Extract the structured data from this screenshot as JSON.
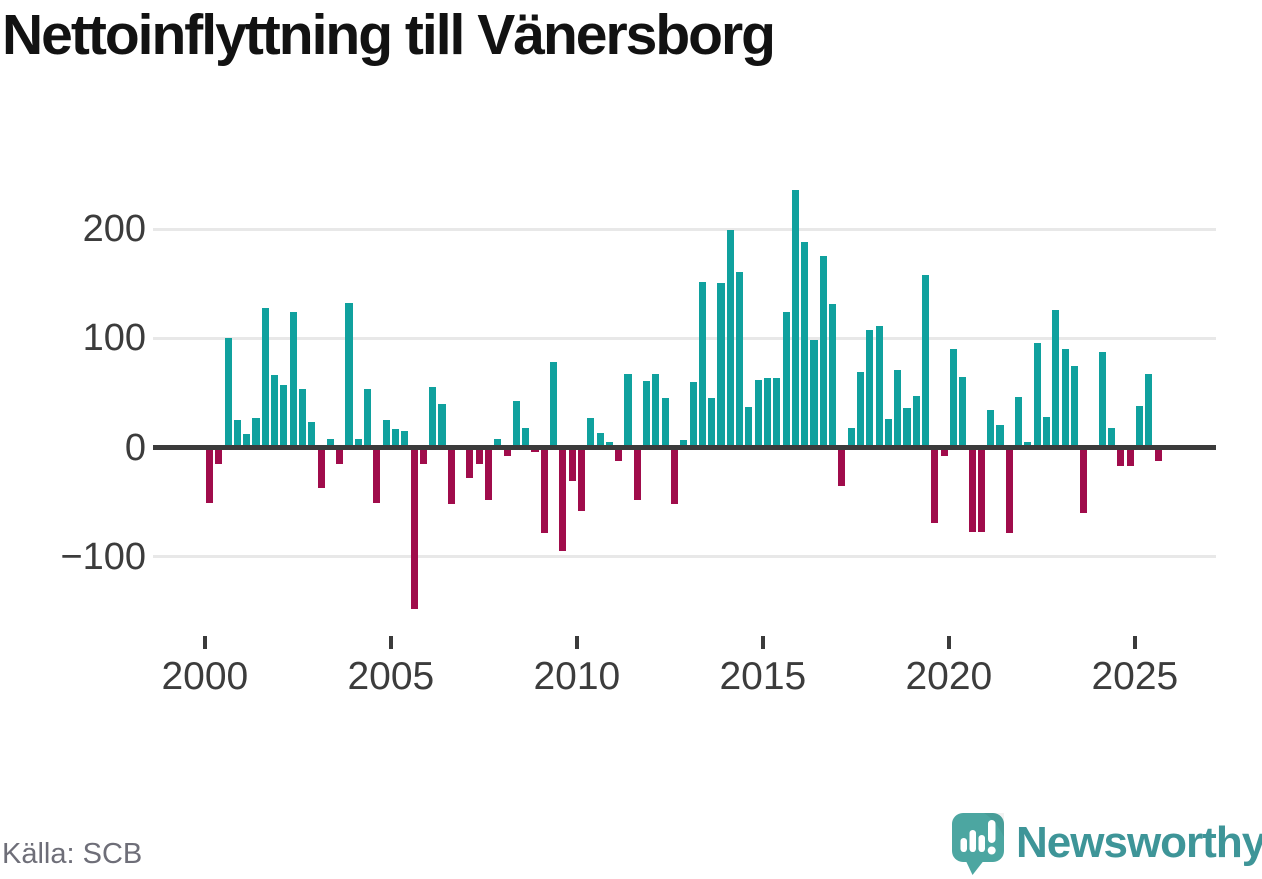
{
  "title": "Nettoinflyttning till Vänersborg",
  "source": "Källa: SCB",
  "brand": {
    "name": "Newsworthy",
    "icon": "newsworthy-speech-bubble-chart-icon"
  },
  "colors": {
    "positive": "#10A19E",
    "negative": "#A00C4B",
    "zero_line": "#3B3B3B",
    "grid": "#E8E8E8",
    "tick_label": "#3C3C3C",
    "title": "#121212",
    "source": "#6E6E78",
    "brand_text": "#3E9598",
    "brand_icon": "#4CA6A1"
  },
  "chart_data": {
    "type": "bar",
    "title": "Nettoinflyttning till Vänersborg",
    "xlabel": "",
    "ylabel": "",
    "frequency": "quarterly",
    "grid": "horizontal",
    "legend": "none",
    "ylim": [
      -175,
      245
    ],
    "y_ticks": [
      {
        "label": "200",
        "value": 200
      },
      {
        "label": "100",
        "value": 100
      },
      {
        "label": "0",
        "value": 0
      },
      {
        "label": "−100",
        "value": -100
      }
    ],
    "x_ticks": [
      {
        "label": "2000",
        "year": 2000
      },
      {
        "label": "2005",
        "year": 2005
      },
      {
        "label": "2010",
        "year": 2010
      },
      {
        "label": "2015",
        "year": 2015
      },
      {
        "label": "2020",
        "year": 2020
      },
      {
        "label": "2025",
        "year": 2025
      }
    ],
    "series": [
      {
        "name": "Nettoinflyttning",
        "start_period": "2000 Q1",
        "periods": [
          "2000 Q1",
          "2000 Q2",
          "2000 Q3",
          "2000 Q4",
          "2001 Q1",
          "2001 Q2",
          "2001 Q3",
          "2001 Q4",
          "2002 Q1",
          "2002 Q2",
          "2002 Q3",
          "2002 Q4",
          "2003 Q1",
          "2003 Q2",
          "2003 Q3",
          "2003 Q4",
          "2004 Q1",
          "2004 Q2",
          "2004 Q3",
          "2004 Q4",
          "2005 Q1",
          "2005 Q2",
          "2005 Q3",
          "2005 Q4",
          "2006 Q1",
          "2006 Q2",
          "2006 Q3",
          "2006 Q4",
          "2007 Q1",
          "2007 Q2",
          "2007 Q3",
          "2007 Q4",
          "2008 Q1",
          "2008 Q2",
          "2008 Q3",
          "2008 Q4",
          "2009 Q1",
          "2009 Q2",
          "2009 Q3",
          "2009 Q4",
          "2010 Q1",
          "2010 Q2",
          "2010 Q3",
          "2010 Q4",
          "2011 Q1",
          "2011 Q2",
          "2011 Q3",
          "2011 Q4",
          "2012 Q1",
          "2012 Q2",
          "2012 Q3",
          "2012 Q4",
          "2013 Q1",
          "2013 Q2",
          "2013 Q3",
          "2013 Q4",
          "2014 Q1",
          "2014 Q2",
          "2014 Q3",
          "2014 Q4",
          "2015 Q1",
          "2015 Q2",
          "2015 Q3",
          "2015 Q4",
          "2016 Q1",
          "2016 Q2",
          "2016 Q3",
          "2016 Q4",
          "2017 Q1",
          "2017 Q2",
          "2017 Q3",
          "2017 Q4",
          "2018 Q1",
          "2018 Q2",
          "2018 Q3",
          "2018 Q4",
          "2019 Q1",
          "2019 Q2",
          "2019 Q3",
          "2019 Q4",
          "2020 Q1",
          "2020 Q2",
          "2020 Q3",
          "2020 Q4",
          "2021 Q1",
          "2021 Q2",
          "2021 Q3",
          "2021 Q4",
          "2022 Q1",
          "2022 Q2",
          "2022 Q3",
          "2022 Q4",
          "2023 Q1",
          "2023 Q2",
          "2023 Q3",
          "2023 Q4",
          "2024 Q1",
          "2024 Q2",
          "2024 Q3",
          "2024 Q4",
          "2025 Q1",
          "2025 Q2",
          "2025 Q3"
        ],
        "values": [
          -51,
          -15,
          100,
          25,
          12,
          27,
          128,
          66,
          57,
          124,
          54,
          23,
          -37,
          8,
          -15,
          132,
          8,
          54,
          -51,
          25,
          17,
          15,
          -148,
          -15,
          55,
          40,
          -52,
          0,
          -28,
          -15,
          -48,
          8,
          -8,
          43,
          18,
          -4,
          -78,
          78,
          -95,
          -31,
          -58,
          27,
          13,
          5,
          -12,
          67,
          -48,
          61,
          67,
          45,
          -52,
          7,
          60,
          152,
          45,
          151,
          199,
          161,
          37,
          62,
          64,
          64,
          124,
          236,
          188,
          98,
          175,
          131,
          -35,
          18,
          69,
          108,
          111,
          26,
          71,
          36,
          47,
          158,
          -69,
          -8,
          90,
          65,
          -77,
          -77,
          34,
          21,
          -78,
          46,
          5,
          96,
          28,
          126,
          90,
          75,
          -60,
          0,
          87,
          18,
          -17,
          -17,
          38,
          67,
          -12
        ]
      }
    ]
  }
}
